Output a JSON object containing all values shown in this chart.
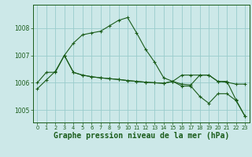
{
  "background_color": "#cce8e8",
  "grid_color": "#99cccc",
  "line_color": "#1a5c1a",
  "title": "Graphe pression niveau de la mer (hPa)",
  "ylim": [
    1004.55,
    1008.85
  ],
  "xlim": [
    -0.5,
    23.5
  ],
  "yticks": [
    1005,
    1006,
    1007,
    1008
  ],
  "xticks": [
    0,
    1,
    2,
    3,
    4,
    5,
    6,
    7,
    8,
    9,
    10,
    11,
    12,
    13,
    14,
    15,
    16,
    17,
    18,
    19,
    20,
    21,
    22,
    23
  ],
  "series1_x": [
    0,
    1,
    2,
    3,
    4,
    5,
    6,
    7,
    8,
    9,
    10,
    11,
    12,
    13,
    14,
    15,
    16,
    17,
    18,
    19,
    20,
    21,
    22,
    23
  ],
  "series1_y": [
    1005.78,
    1006.1,
    1006.42,
    1007.0,
    1007.45,
    1007.75,
    1007.82,
    1007.88,
    1008.08,
    1008.28,
    1008.38,
    1007.82,
    1007.22,
    1006.75,
    1006.18,
    1006.05,
    1005.95,
    1005.92,
    1006.28,
    1006.28,
    1006.05,
    1006.05,
    1005.38,
    1004.78
  ],
  "series2_x": [
    0,
    1,
    2,
    3,
    4,
    5,
    6,
    7,
    8,
    9,
    10,
    11,
    12,
    13,
    14,
    15,
    16,
    17,
    18,
    19,
    20,
    21,
    22,
    23
  ],
  "series2_y": [
    1006.0,
    1006.38,
    1006.38,
    1007.0,
    1006.38,
    1006.28,
    1006.22,
    1006.18,
    1006.15,
    1006.12,
    1006.08,
    1006.05,
    1006.02,
    1006.0,
    1005.98,
    1006.05,
    1006.28,
    1006.28,
    1006.28,
    1006.28,
    1006.05,
    1006.02,
    1005.95,
    1005.95
  ],
  "series3_x": [
    3,
    4,
    5,
    6,
    7,
    8,
    9,
    10,
    11,
    12,
    13,
    14,
    15,
    16,
    17,
    18,
    19,
    20,
    21,
    22,
    23
  ],
  "series3_y": [
    1007.0,
    1006.38,
    1006.28,
    1006.22,
    1006.18,
    1006.15,
    1006.12,
    1006.08,
    1006.05,
    1006.02,
    1006.0,
    1005.98,
    1006.05,
    1005.88,
    1005.88,
    1005.5,
    1005.25,
    1005.6,
    1005.6,
    1005.35,
    1004.78
  ]
}
